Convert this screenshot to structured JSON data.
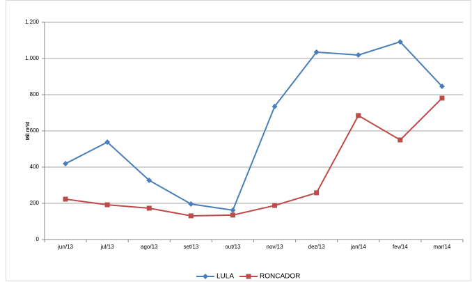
{
  "chart_data": {
    "type": "line",
    "y_label": "Mil m³/d",
    "categories": [
      "jun/13",
      "jul/13",
      "ago/13",
      "set/13",
      "out/13",
      "nov/13",
      "dez/13",
      "jan/14",
      "fev/14",
      "mar/14"
    ],
    "series": [
      {
        "name": "LULA",
        "color": "#4a7ebb",
        "marker": "diamond",
        "values": [
          419,
          538,
          327,
          196,
          162,
          735,
          1035,
          1019,
          1092,
          846
        ]
      },
      {
        "name": "RONCADOR",
        "color": "#be4b48",
        "marker": "square",
        "values": [
          223,
          192,
          173,
          131,
          135,
          188,
          258,
          685,
          550,
          781
        ]
      }
    ],
    "ylim": [
      0,
      1200
    ],
    "yticks": [
      0,
      200,
      400,
      600,
      800,
      {
        "value": 1000,
        "label": "1.000"
      },
      {
        "value": 1200,
        "label": "1.200"
      }
    ],
    "grid": true,
    "legend": "bottom"
  }
}
